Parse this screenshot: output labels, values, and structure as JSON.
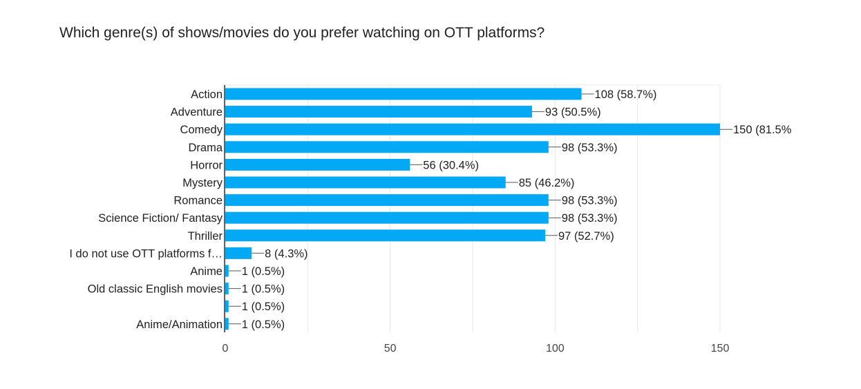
{
  "chart_data": {
    "type": "bar",
    "orientation": "horizontal",
    "title": "Which genre(s) of shows/movies do you prefer watching on OTT platforms?",
    "categories": [
      "Action",
      "Adventure",
      "Comedy",
      "Drama",
      "Horror",
      "Mystery",
      "Romance",
      "Science Fiction/ Fantasy",
      "Thriller",
      "I do not use OTT platforms f…",
      "Anime",
      "Old classic English movies",
      "",
      "Anime/Animation"
    ],
    "values": [
      108,
      93,
      150,
      98,
      56,
      85,
      98,
      98,
      97,
      8,
      1,
      1,
      1,
      1
    ],
    "data_labels": [
      "108 (58.7%)",
      "93 (50.5%)",
      "150 (81.5%",
      "98 (53.3%)",
      "56 (30.4%)",
      "85 (46.2%)",
      "98 (53.3%)",
      "98 (53.3%)",
      "97 (52.7%)",
      "8 (4.3%)",
      "1 (0.5%)",
      "1 (0.5%)",
      "1 (0.5%)",
      "1 (0.5%)"
    ],
    "xlim": [
      0,
      150
    ],
    "xticks": [
      0,
      50,
      100,
      150
    ],
    "xtick_labels": [
      "0",
      "50",
      "100",
      "150"
    ],
    "grid": true,
    "bar_color": "#03a9f4"
  }
}
